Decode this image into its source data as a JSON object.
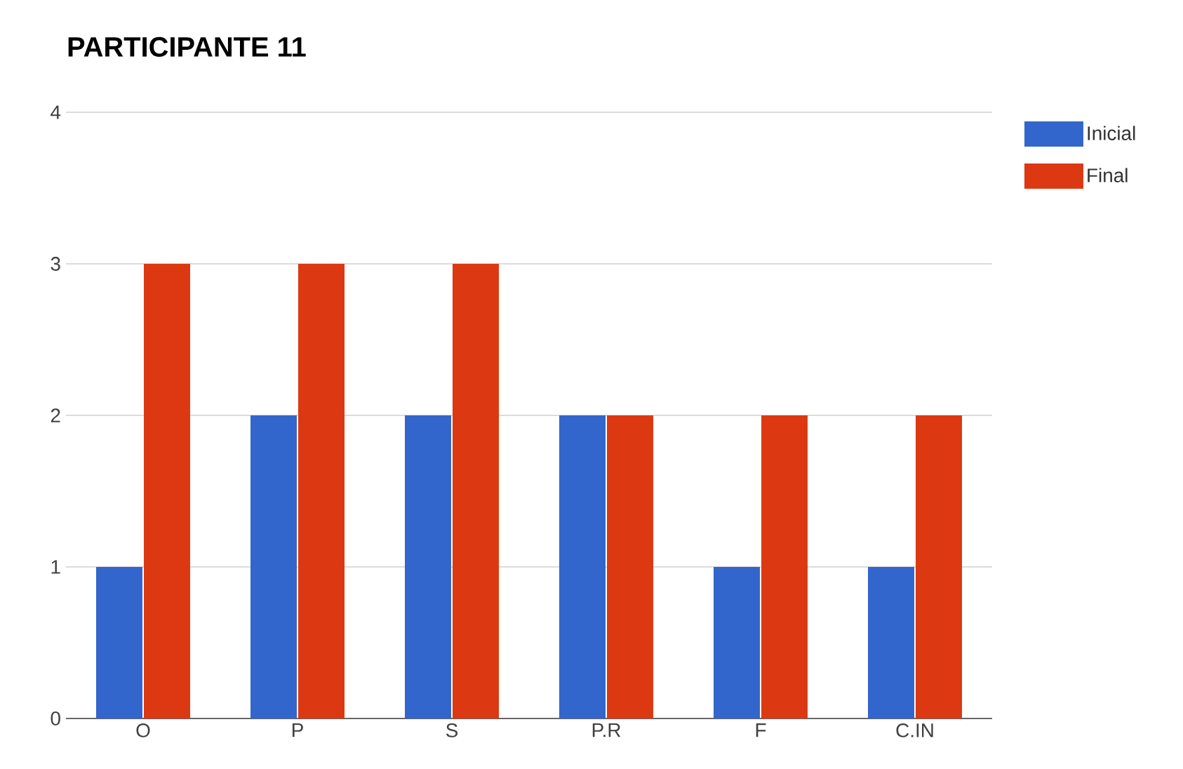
{
  "chart_data": {
    "type": "bar",
    "title": "PARTICIPANTE 11",
    "categories": [
      "O",
      "P",
      "S",
      "P.R",
      "F",
      "C.IN"
    ],
    "series": [
      {
        "name": "Inicial",
        "color": "#3366cc",
        "values": [
          1,
          2,
          2,
          2,
          1,
          1
        ]
      },
      {
        "name": "Final",
        "color": "#dc3912",
        "values": [
          3,
          3,
          3,
          2,
          2,
          2
        ]
      }
    ],
    "ylim": [
      0,
      4
    ],
    "yticks": [
      0,
      1,
      2,
      3,
      4
    ],
    "grid": "y",
    "legend": "right"
  }
}
